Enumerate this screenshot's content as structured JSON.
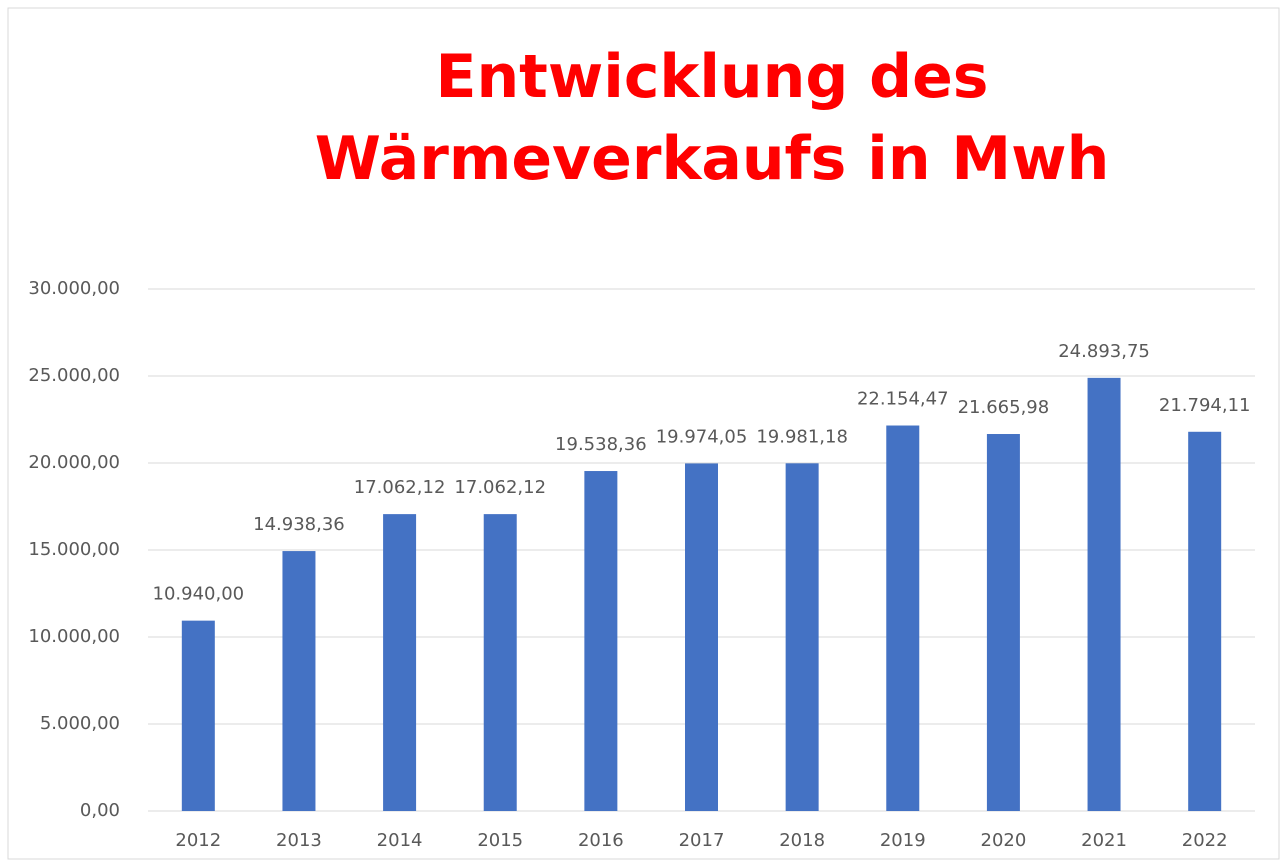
{
  "chart_data": {
    "type": "bar",
    "title": "Entwicklung des Wärmeverkaufs in Mwh",
    "categories": [
      "2012",
      "2013",
      "2014",
      "2015",
      "2016",
      "2017",
      "2018",
      "2019",
      "2020",
      "2021",
      "2022"
    ],
    "values": [
      10940,
      14938.36,
      17062.12,
      17062.12,
      19538.36,
      19974.05,
      19981.18,
      22154.47,
      21665.98,
      24893.75,
      21794.11
    ],
    "value_labels": [
      "10.940,00",
      "14.938,36",
      "17.062,12",
      "17.062,12",
      "19.538,36",
      "19.974,05",
      "19.981,18",
      "22.154,47",
      "21.665,98",
      "24.893,75",
      "21.794,11"
    ],
    "color": "#4472c4",
    "ylim": [
      0,
      30000
    ],
    "yticks": [
      {
        "value": 0,
        "label": "0,00"
      },
      {
        "value": 5000,
        "label": "5.000,00"
      },
      {
        "value": 10000,
        "label": "10.000,00"
      },
      {
        "value": 15000,
        "label": "15.000,00"
      },
      {
        "value": 20000,
        "label": "20.000,00"
      },
      {
        "value": 25000,
        "label": "25.000,00"
      },
      {
        "value": 30000,
        "label": "30.000,00"
      }
    ],
    "grid": true
  }
}
